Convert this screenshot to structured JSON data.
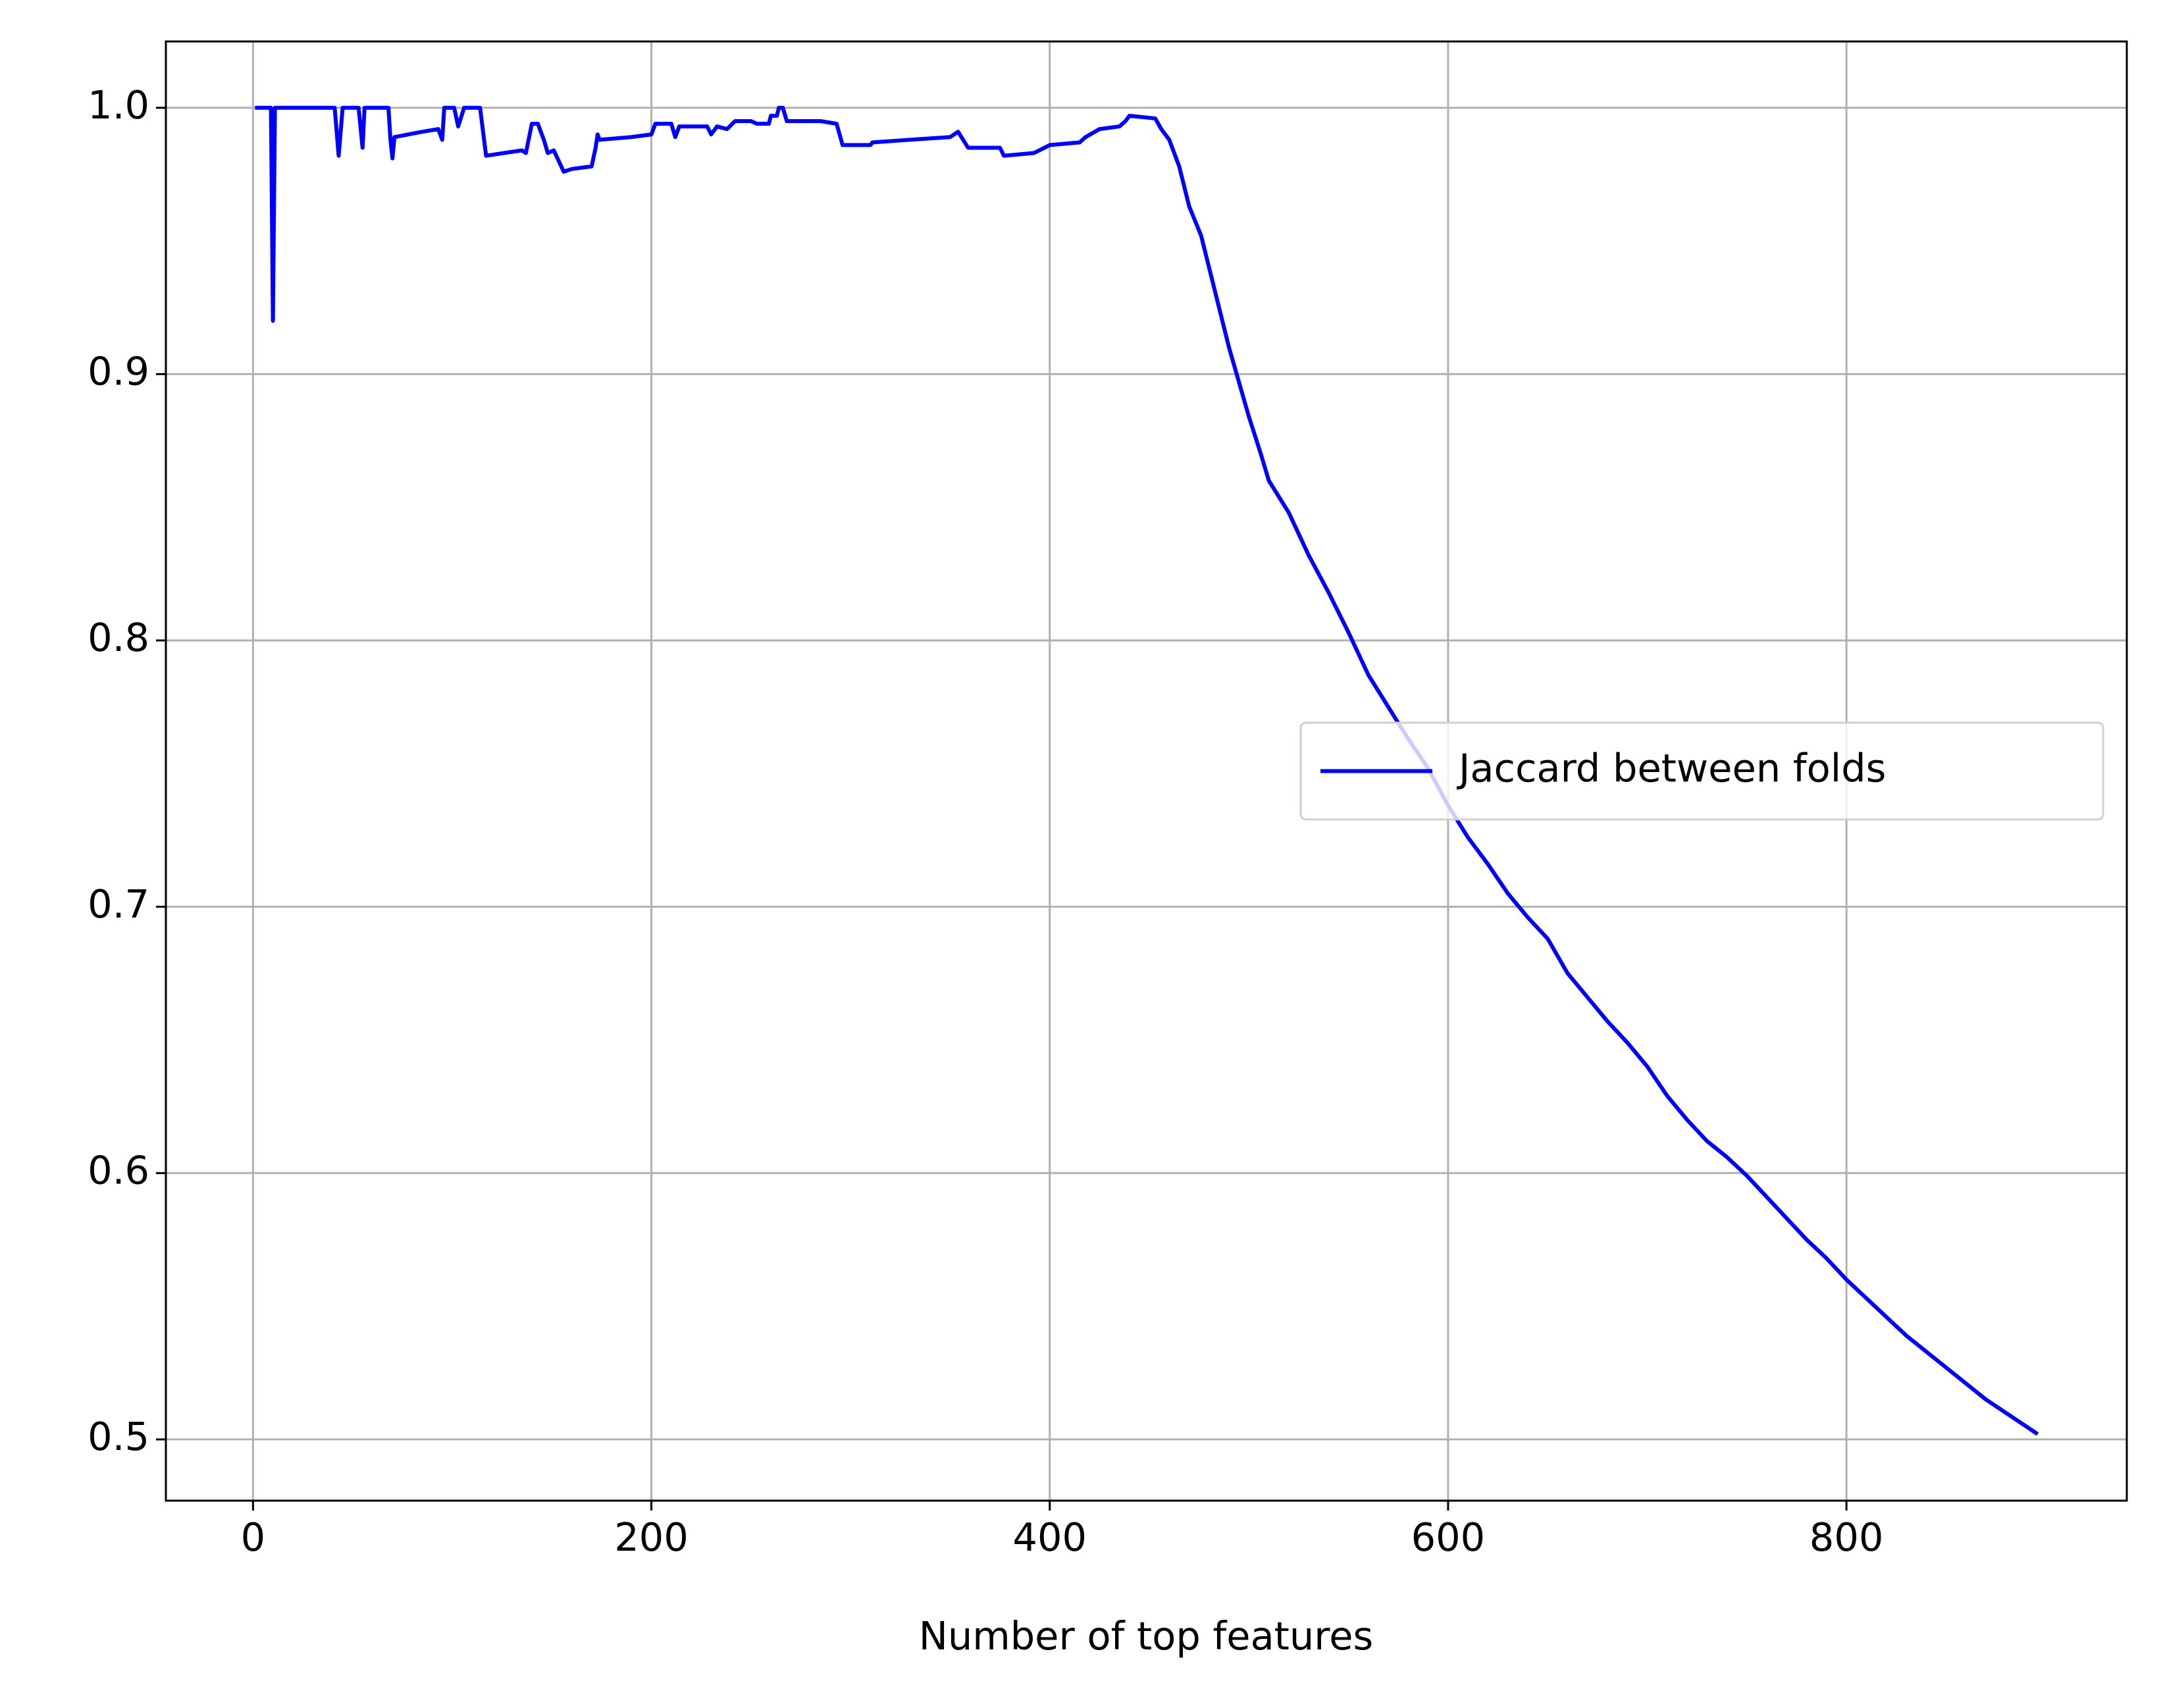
{
  "chart_data": {
    "type": "line",
    "xlabel": "Number of top features",
    "x": [
      1,
      9,
      10,
      11,
      41,
      43,
      45,
      53,
      55,
      56,
      68,
      69,
      70,
      71,
      85,
      93,
      95,
      96,
      101,
      103,
      106,
      114,
      117,
      135,
      137,
      140,
      143,
      146,
      148,
      151,
      156,
      160,
      170,
      172,
      173,
      174,
      190,
      200,
      202,
      210,
      212,
      214,
      228,
      230,
      233,
      238,
      242,
      250,
      253,
      259,
      260,
      263,
      264,
      266,
      268,
      280,
      285,
      293,
      296,
      310,
      311,
      330,
      350,
      354,
      359,
      375,
      377,
      392,
      400,
      415,
      418,
      425,
      435,
      438,
      440,
      453,
      456,
      460,
      465,
      470,
      476,
      480,
      485,
      490,
      495,
      500,
      506,
      510,
      520,
      530,
      540,
      550,
      560,
      570,
      580,
      590,
      600,
      610,
      620,
      630,
      640,
      650,
      660,
      670,
      680,
      690,
      700,
      710,
      720,
      730,
      740,
      750,
      760,
      770,
      780,
      790,
      800,
      810,
      820,
      830,
      840,
      850,
      860,
      870,
      880,
      890,
      896
    ],
    "series": [
      {
        "name": "Jaccard between folds",
        "color": "#0000ff",
        "values": [
          1.0,
          1.0,
          0.92,
          1.0,
          1.0,
          0.982,
          1.0,
          1.0,
          0.985,
          1.0,
          1.0,
          0.988,
          0.981,
          0.989,
          0.991,
          0.992,
          0.988,
          1.0,
          1.0,
          0.993,
          1.0,
          1.0,
          0.982,
          0.984,
          0.983,
          0.994,
          0.994,
          0.988,
          0.983,
          0.984,
          0.976,
          0.977,
          0.978,
          0.985,
          0.99,
          0.988,
          0.989,
          0.99,
          0.994,
          0.994,
          0.989,
          0.993,
          0.993,
          0.99,
          0.993,
          0.992,
          0.995,
          0.995,
          0.994,
          0.994,
          0.997,
          0.997,
          1.0,
          1.0,
          0.995,
          0.995,
          0.995,
          0.994,
          0.986,
          0.986,
          0.987,
          0.988,
          0.989,
          0.991,
          0.985,
          0.985,
          0.982,
          0.983,
          0.986,
          0.987,
          0.989,
          0.992,
          0.993,
          0.995,
          0.997,
          0.996,
          0.992,
          0.988,
          0.978,
          0.963,
          0.952,
          0.94,
          0.925,
          0.91,
          0.897,
          0.884,
          0.87,
          0.86,
          0.848,
          0.832,
          0.818,
          0.803,
          0.787,
          0.775,
          0.763,
          0.752,
          0.738,
          0.726,
          0.716,
          0.705,
          0.696,
          0.688,
          0.675,
          0.666,
          0.657,
          0.649,
          0.64,
          0.629,
          0.62,
          0.612,
          0.606,
          0.599,
          0.591,
          0.583,
          0.575,
          0.568,
          0.56,
          0.553,
          0.546,
          0.539,
          0.533,
          0.527,
          0.521,
          0.515,
          0.51,
          0.505,
          0.502
        ]
      }
    ],
    "xlim": [
      -43.75,
      940.75
    ],
    "xticks": [
      0,
      200,
      400,
      600,
      800
    ],
    "ylim": [
      0.477,
      1.0249
    ],
    "yticks": [
      {
        "value": 0.5,
        "label": "0.5"
      },
      {
        "value": 0.6,
        "label": "0.6"
      },
      {
        "value": 0.7,
        "label": "0.7"
      },
      {
        "value": 0.8,
        "label": "0.8"
      },
      {
        "value": 0.9,
        "label": "0.9"
      },
      {
        "value": 1.0,
        "label": "1.0"
      }
    ],
    "grid": true,
    "legend": "center right"
  }
}
